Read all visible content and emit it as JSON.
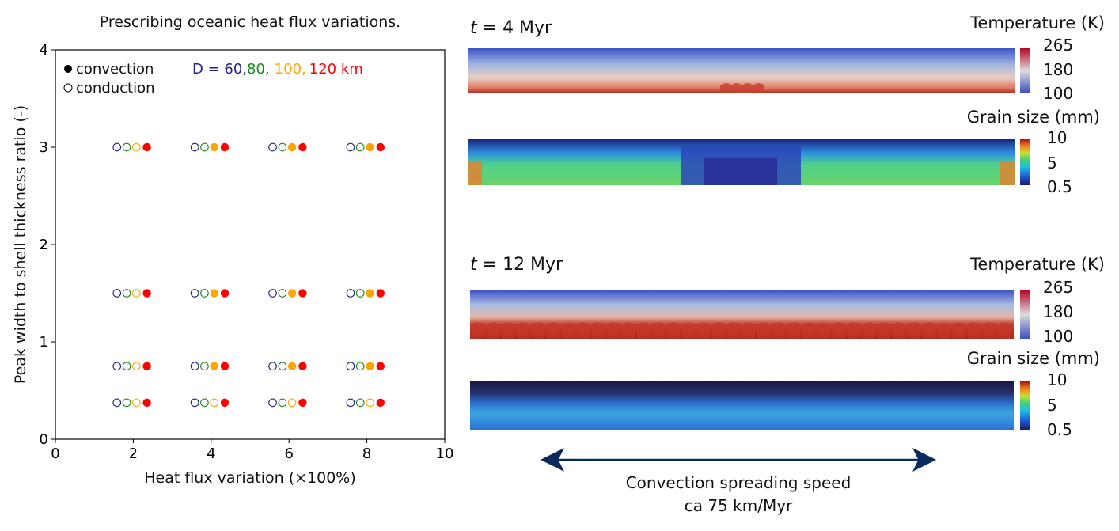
{
  "chart_data": {
    "type": "scatter",
    "title": "Prescribing oceanic heat flux variations.",
    "xlabel": "Heat flux variation (×100%)",
    "ylabel": "Peak width to shell thickness ratio (-)",
    "xlim": [
      0,
      10
    ],
    "ylim": [
      0,
      4
    ],
    "xticks": [
      "0",
      "2",
      "4",
      "6",
      "8",
      "10"
    ],
    "yticks": [
      "0",
      "1",
      "2",
      "3",
      "4"
    ],
    "grid": false,
    "legend": {
      "placement": "top-left",
      "filled_label": "convection",
      "open_label": "conduction"
    },
    "d_label": {
      "prefix": "D = ",
      "values": [
        "60,",
        "80,",
        "100,",
        "120 km"
      ]
    },
    "heat_flux_values": [
      2,
      4,
      6,
      8
    ],
    "width_ratio_values": [
      0.375,
      0.75,
      1.5,
      3
    ],
    "series": [
      {
        "thickness_km": 60,
        "color": "#1f1f8f",
        "convection": [
          [
            0,
            0,
            0,
            0
          ],
          [
            0,
            0,
            0,
            0
          ],
          [
            0,
            0,
            0,
            0
          ],
          [
            0,
            0,
            0,
            0
          ]
        ]
      },
      {
        "thickness_km": 80,
        "color": "#1a8a1a",
        "convection": [
          [
            0,
            0,
            0,
            0
          ],
          [
            0,
            0,
            0,
            0
          ],
          [
            0,
            0,
            0,
            0
          ],
          [
            0,
            0,
            0,
            0
          ]
        ]
      },
      {
        "thickness_km": 100,
        "color": "#ffa500",
        "convection": [
          [
            0,
            0,
            0,
            0
          ],
          [
            0,
            1,
            1,
            1
          ],
          [
            0,
            1,
            1,
            1
          ],
          [
            0,
            1,
            1,
            1
          ]
        ]
      },
      {
        "thickness_km": 120,
        "color": "#ff0000",
        "convection": [
          [
            1,
            1,
            1,
            1
          ],
          [
            1,
            1,
            1,
            1
          ],
          [
            1,
            1,
            1,
            1
          ],
          [
            1,
            1,
            1,
            1
          ]
        ]
      }
    ]
  },
  "panels": {
    "t4_label": "= 4 Myr",
    "t12_label": "= 12 Myr",
    "t_symbol": "t",
    "temp_title": "Temperature (K)",
    "temp_ticks": [
      "265",
      "180",
      "100"
    ],
    "grain_title": "Grain size (mm)",
    "grain_ticks": [
      "10",
      "5",
      "0.5"
    ]
  },
  "annotation": {
    "line1": "Convection spreading speed",
    "line2": "ca 75 km/Myr",
    "arrow_color": "#0b2a5c"
  }
}
